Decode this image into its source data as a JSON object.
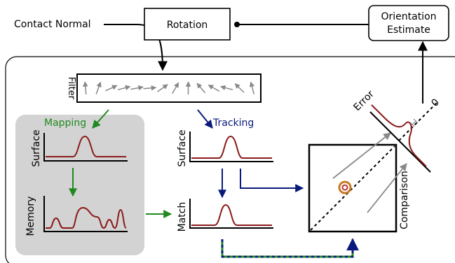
{
  "labels": {
    "contact_normal": "Contact Normal",
    "rotation": "Rotation",
    "orientation_line1": "Orientation",
    "orientation_line2": "Estimate",
    "filter": "Filter",
    "mapping": "Mapping",
    "tracking": "Tracking",
    "surface_left": "Surface",
    "memory": "Memory",
    "surface_mid": "Surface",
    "match": "Match",
    "comparison": "Comparison",
    "error": "Error",
    "zero": "0"
  },
  "colors": {
    "curve": "#8b1a1a",
    "mapping_green": "#1f8a1f",
    "tracking_blue": "#0a1a7a",
    "gray_arrow": "#888888",
    "memory_panel": "#d3d3d3",
    "ring_orange": "#c87a1e",
    "ring_red": "#b22222",
    "stroke": "#000000"
  },
  "filter_arrow_angles_deg": [
    -95,
    -70,
    -25,
    -15,
    -10,
    -5,
    -35,
    -60,
    -90,
    -130,
    -150,
    -165,
    -135,
    -105
  ]
}
